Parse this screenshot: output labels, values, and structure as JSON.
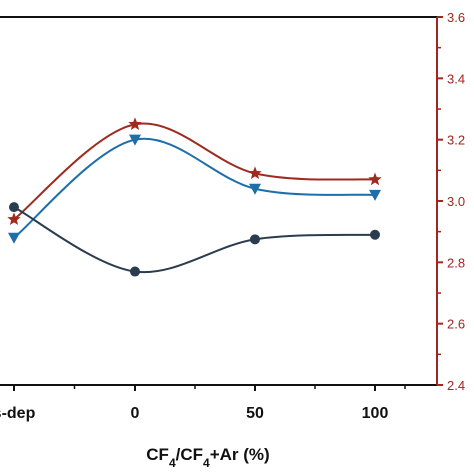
{
  "chart_data": {
    "type": "line",
    "categories": [
      "s-dep",
      "0",
      "50",
      "100"
    ],
    "xlabel": {
      "main": "CF",
      "sub1": "4",
      "mid": "/CF",
      "sub2": "4",
      "tail": "+Ar (%)"
    },
    "yright": {
      "ticks": [
        "2.4",
        "2.6",
        "2.8",
        "3.0",
        "3.2",
        "3.4",
        "3.6"
      ],
      "ylim": [
        2.4,
        3.6
      ],
      "color": "#a0261f"
    },
    "series": [
      {
        "marker": "star",
        "color": "#9e2a20",
        "values": [
          2.94,
          3.25,
          3.09,
          3.07
        ]
      },
      {
        "marker": "triangle-down",
        "color": "#1c6fa8",
        "values": [
          2.88,
          3.2,
          3.04,
          3.02
        ]
      },
      {
        "marker": "circle",
        "color": "#2a3d4e",
        "values": [
          2.98,
          2.77,
          2.875,
          2.89
        ]
      }
    ]
  }
}
